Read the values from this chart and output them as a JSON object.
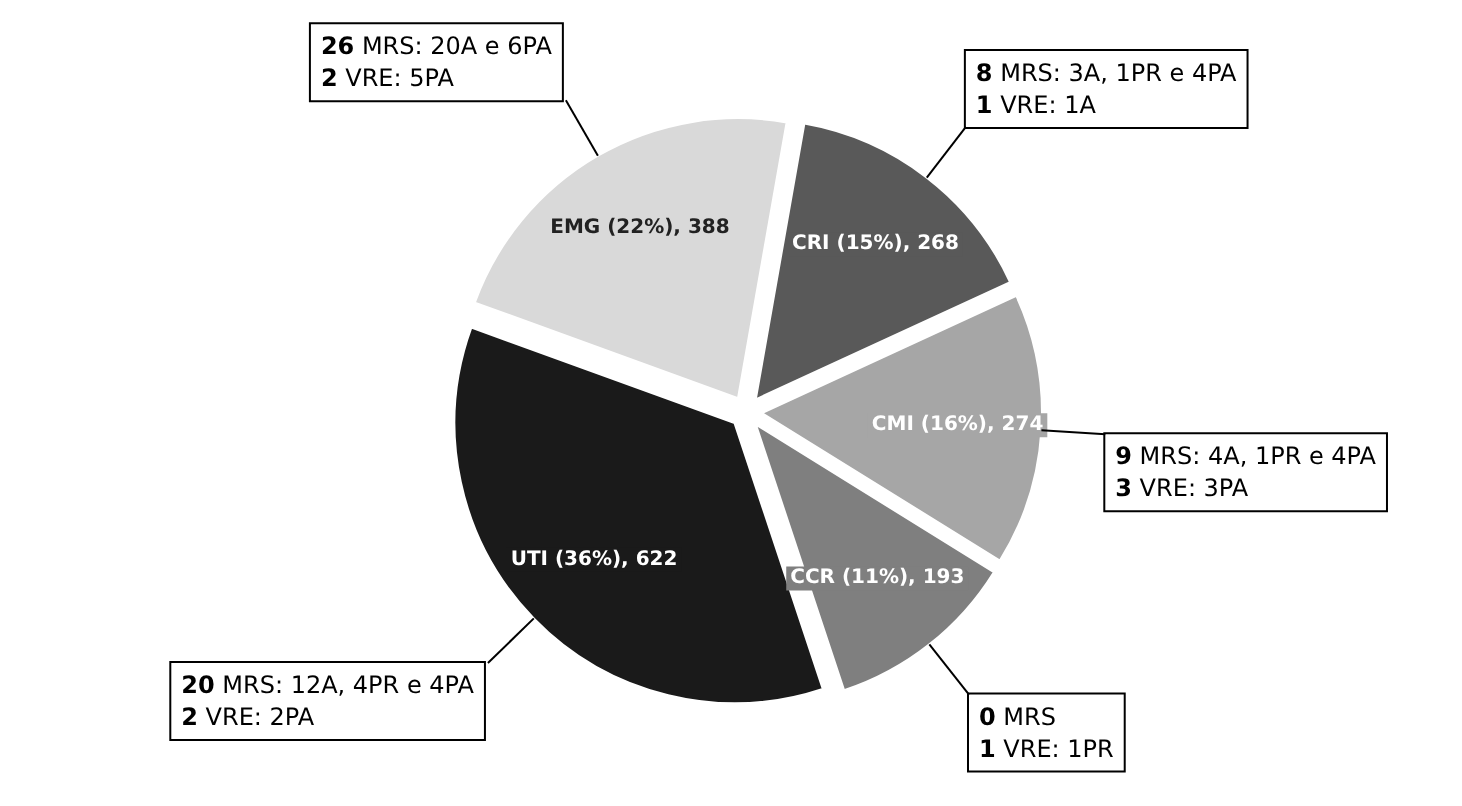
{
  "chart_data": {
    "type": "pie",
    "categories": [
      "CRI",
      "CMI",
      "CCR",
      "UTI",
      "EMG"
    ],
    "values": [
      268,
      274,
      193,
      622,
      388
    ],
    "colors": [
      "#595959",
      "#a6a6a6",
      "#7f7f7f",
      "#1a1a1a",
      "#d9d9d9"
    ],
    "value_labels": [
      "(15%), 268",
      "(16%), 274",
      "(11%), 193",
      "(36%), 622",
      "(22%), 388"
    ],
    "annotations": [
      "8 MRS: 3A, 1PR e 4PA\n1 VRE: 1A",
      "9 MRS: 4A, 1PR e 4PA\n3 VRE: 3PA",
      "0 MRS\n1 VRE: 1PR",
      "20 MRS: 12A, 4PR e 4PA\n2 VRE: 2PA",
      "26 MRS: 20A e 6PA\n2 VRE: 5PA"
    ],
    "legend": false
  }
}
